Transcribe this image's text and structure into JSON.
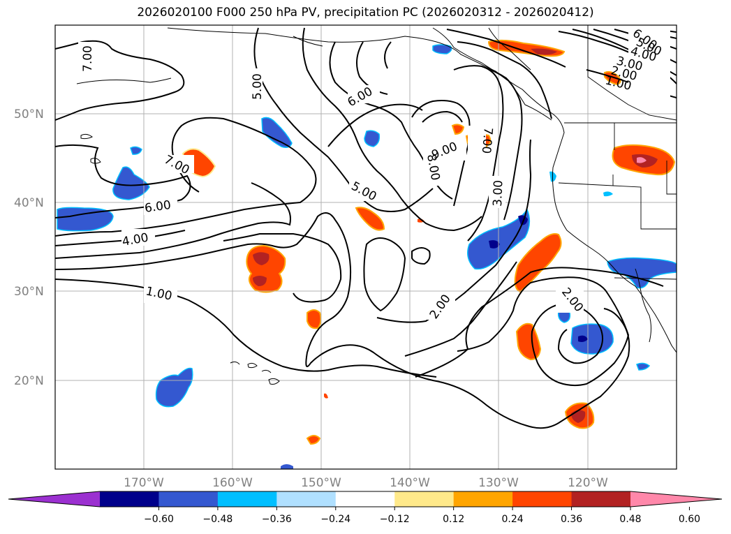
{
  "title": "2026020100 F000 250 hPa PV, precipitation PC (2026020312 - 2026020412)",
  "latitude_labels": [
    "50°N",
    "40°N",
    "30°N",
    "20°N"
  ],
  "longitude_labels": [
    "170°W",
    "160°W",
    "150°W",
    "140°W",
    "130°W",
    "120°W"
  ],
  "colorbar": {
    "colors": [
      "#9b30d0",
      "#00008b",
      "#3458d0",
      "#00bfff",
      "#b0e0ff",
      "#ffffff",
      "#ffe98a",
      "#ffa500",
      "#ff4500",
      "#b22222",
      "#ff88aa"
    ],
    "tick_labels": [
      "−0.60",
      "−0.48",
      "−0.36",
      "−0.24",
      "−0.12",
      "0.12",
      "0.24",
      "0.36",
      "0.48",
      "0.60"
    ]
  },
  "contour_labels": [
    "7.00",
    "5.00",
    "6.00",
    "7.00",
    "6.00",
    "4.00",
    "5.00",
    "1.00",
    "9.00",
    "8.00",
    "7.00",
    "3.00",
    "2.00",
    "2.00",
    "6.00",
    "5.00",
    "4.00",
    "3.00",
    "2.00",
    "1.00"
  ]
}
